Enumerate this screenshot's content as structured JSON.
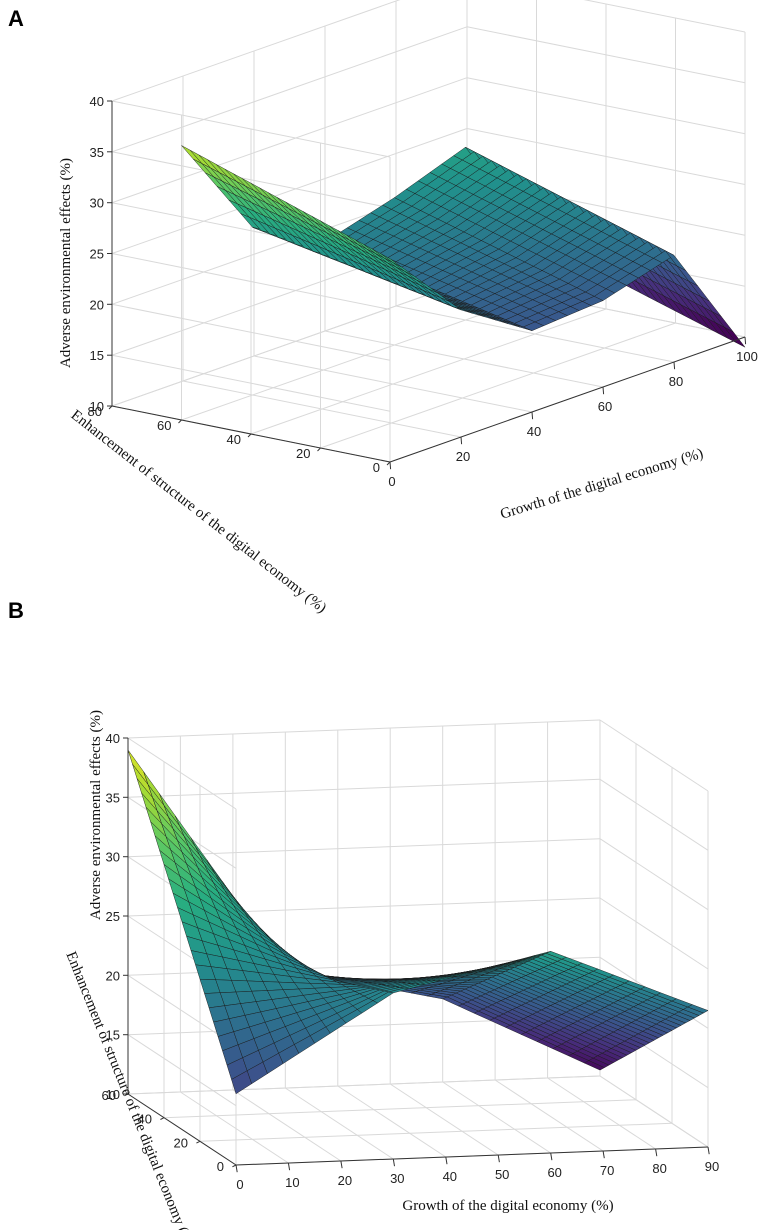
{
  "colors": {
    "viridis": [
      "#440154",
      "#472d7b",
      "#3b528b",
      "#2c728e",
      "#21918c",
      "#28ae80",
      "#5ec962",
      "#addc30",
      "#fde725"
    ],
    "grid": "#d9d9d9",
    "mesh": "#1a1a1a"
  },
  "chart_data": [
    {
      "panel": "A",
      "type": "surface",
      "title": "",
      "xlabel": "Growth of the digital economy (%)",
      "ylabel": "Enhancement of structure of the digital economy (%)",
      "zlabel": "Adverse environmental effects (%)",
      "xlim": [
        0,
        100
      ],
      "ylim": [
        0,
        80
      ],
      "zlim": [
        10,
        40
      ],
      "xticks": [
        "0",
        "20",
        "40",
        "60",
        "80",
        "100"
      ],
      "yticks": [
        "0",
        "20",
        "40",
        "60",
        "80"
      ],
      "zticks": [
        "10",
        "15",
        "20",
        "25",
        "30",
        "35",
        "40"
      ],
      "x": [
        0,
        20,
        40,
        60,
        80,
        100
      ],
      "y_range": [
        0,
        60
      ],
      "z_front": [
        30.0,
        22.5,
        18.0,
        18.5,
        20.5,
        9.0
      ],
      "z_back": [
        37.0,
        26.5,
        22.5,
        24.5,
        27.0,
        15.5
      ],
      "grid": true,
      "colormap": "viridis"
    },
    {
      "panel": "B",
      "type": "surface",
      "title": "",
      "xlabel": "Growth of the digital economy (%)",
      "ylabel": "Enhancement of structure of the digital economy (%)",
      "zlabel": "Adverse environmental effects (%)",
      "xlim": [
        0,
        90
      ],
      "ylim": [
        0,
        60
      ],
      "zlim": [
        10,
        40
      ],
      "xticks": [
        "0",
        "10",
        "20",
        "30",
        "40",
        "50",
        "60",
        "70",
        "80",
        "90"
      ],
      "yticks": [
        "0",
        "20",
        "40",
        "60"
      ],
      "zticks": [
        "10",
        "15",
        "20",
        "25",
        "30",
        "35",
        "40"
      ],
      "x": [
        0,
        30,
        60,
        90
      ],
      "y_range": [
        0,
        60
      ],
      "z_front": [
        16.0,
        24.0,
        27.0,
        21.5
      ],
      "z_back": [
        39.0,
        20.0,
        17.0,
        10.5
      ],
      "grid": true,
      "colormap": "viridis"
    }
  ]
}
